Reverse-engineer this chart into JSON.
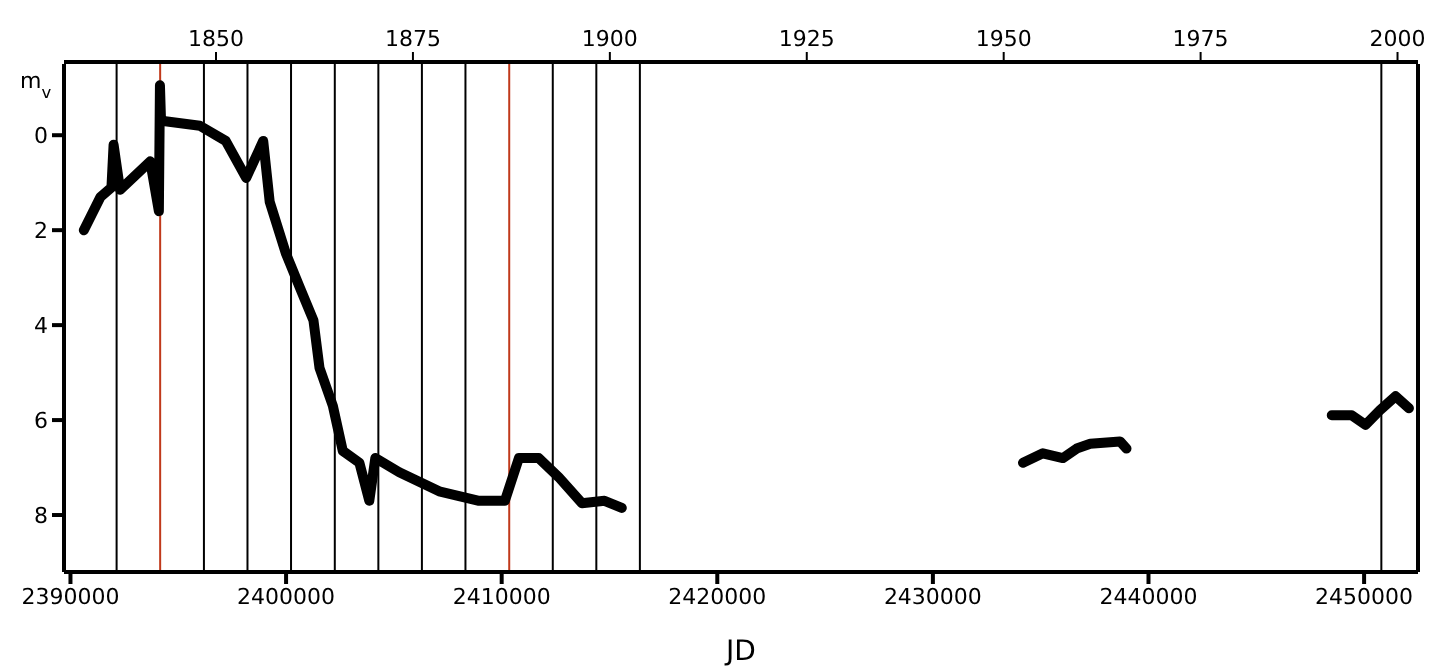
{
  "chart_data": {
    "type": "line",
    "xlabel": "JD",
    "ylabel": "m$_{v}$",
    "x": [
      2390620,
      2391390,
      2391900,
      2392000,
      2392300,
      2393700,
      2394100,
      2394150,
      2394200,
      2394310,
      2396000,
      2397200,
      2398150,
      2398940,
      2399240,
      2400000,
      2400630,
      2401270,
      2401550,
      2402170,
      2402630,
      2403400,
      2403860,
      2404140,
      2405250,
      2407100,
      2408950,
      2410150,
      2410800,
      2411720,
      2412640,
      2413720,
      2414770,
      2415570,
      2425000,
      2434180,
      2435100,
      2436030,
      2436670,
      2437300,
      2438680,
      2438980,
      2443000,
      2448500,
      2449430,
      2450070,
      2450720,
      2451460,
      2452080
    ],
    "series": [
      {
        "color": "#000000",
        "values": [
          2.0,
          1.3,
          1.1,
          0.2,
          1.15,
          0.55,
          1.6,
          -1.05,
          -0.3,
          -0.3,
          -0.2,
          0.12,
          0.9,
          0.12,
          1.4,
          2.5,
          3.2,
          3.9,
          4.9,
          5.7,
          6.65,
          6.9,
          7.7,
          6.8,
          7.1,
          7.5,
          7.7,
          7.7,
          6.8,
          6.8,
          7.2,
          7.75,
          7.7,
          7.85,
          null,
          6.9,
          6.7,
          6.8,
          6.6,
          6.5,
          6.45,
          6.6,
          null,
          5.9,
          5.9,
          6.1,
          5.8,
          5.5,
          5.75
        ]
      }
    ],
    "xlim": [
      2389700,
      2452500
    ],
    "xticks": [
      2390000,
      2400000,
      2410000,
      2420000,
      2430000,
      2440000,
      2450000
    ],
    "x2lim": [
      1830.7,
      2002.6
    ],
    "x2ticks": [
      1850,
      1875,
      1900,
      1925,
      1950,
      1975,
      2000
    ],
    "ylim": [
      9.2,
      -1.5
    ],
    "yticks": [
      0,
      2,
      4,
      6,
      8
    ],
    "marker": "none",
    "line_style": "solid",
    "ref_lines": [
      {
        "axis": "x",
        "value": 2392140,
        "color": "#000000"
      },
      {
        "axis": "x",
        "value": 2394160,
        "color": "#c0391b"
      },
      {
        "axis": "x",
        "value": 2396190,
        "color": "#000000"
      },
      {
        "axis": "x",
        "value": 2398210,
        "color": "#000000"
      },
      {
        "axis": "x",
        "value": 2400230,
        "color": "#000000"
      },
      {
        "axis": "x",
        "value": 2402260,
        "color": "#000000"
      },
      {
        "axis": "x",
        "value": 2404280,
        "color": "#000000"
      },
      {
        "axis": "x",
        "value": 2406300,
        "color": "#000000"
      },
      {
        "axis": "x",
        "value": 2408320,
        "color": "#000000"
      },
      {
        "axis": "x",
        "value": 2410350,
        "color": "#c0391b"
      },
      {
        "axis": "x",
        "value": 2412370,
        "color": "#000000"
      },
      {
        "axis": "x",
        "value": 2414390,
        "color": "#000000"
      },
      {
        "axis": "x",
        "value": 2416410,
        "color": "#000000"
      },
      {
        "axis": "x",
        "value": 2450800,
        "color": "#000000"
      }
    ]
  }
}
